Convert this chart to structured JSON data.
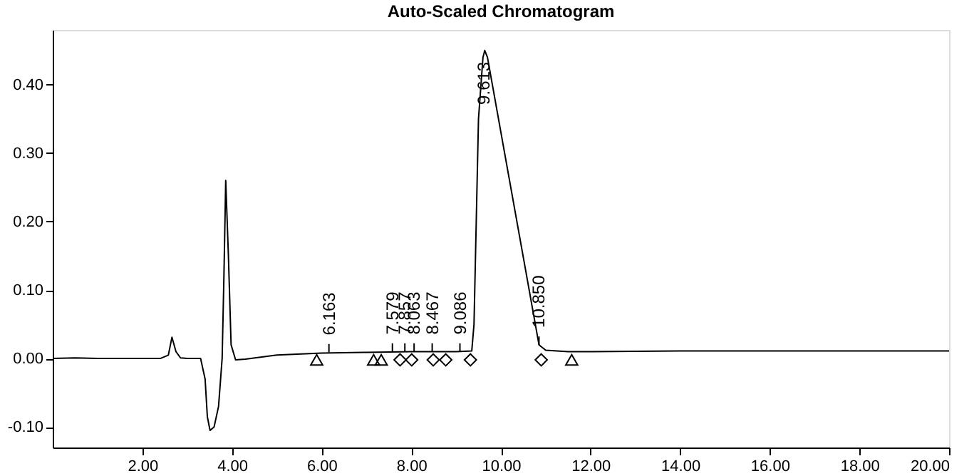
{
  "chart_data": {
    "type": "line",
    "title": "Auto-Scaled Chromatogram",
    "xlim": [
      0,
      20
    ],
    "ylim": [
      -0.13,
      0.48
    ],
    "xticks": [
      {
        "value": 2,
        "label": "2.00"
      },
      {
        "value": 4,
        "label": "4.00"
      },
      {
        "value": 6,
        "label": "6.00"
      },
      {
        "value": 8,
        "label": "8.00"
      },
      {
        "value": 10,
        "label": "10.00"
      },
      {
        "value": 12,
        "label": "12.00"
      },
      {
        "value": 14,
        "label": "14.00"
      },
      {
        "value": 16,
        "label": "16.00"
      },
      {
        "value": 18,
        "label": "18.00"
      },
      {
        "value": 20,
        "label": "20.00"
      }
    ],
    "yticks": [
      {
        "value": -0.1,
        "label": "-0.10"
      },
      {
        "value": 0,
        "label": "0.00"
      },
      {
        "value": 0.1,
        "label": "0.10"
      },
      {
        "value": 0.2,
        "label": "0.20"
      },
      {
        "value": 0.3,
        "label": "0.30"
      },
      {
        "value": 0.4,
        "label": "0.40"
      }
    ],
    "line_style": "solid",
    "series": [
      {
        "color": "#000000",
        "marker": "none",
        "x": [
          0,
          0.5,
          1,
          1.5,
          2,
          2.4,
          2.58,
          2.66,
          2.75,
          2.85,
          3.0,
          3.3,
          3.4,
          3.45,
          3.51,
          3.6,
          3.7,
          3.78,
          3.82,
          3.86,
          3.92,
          3.98,
          4.08,
          4.3,
          5,
          6,
          7,
          8,
          9,
          9.35,
          9.4,
          9.45,
          9.5,
          9.6,
          9.64,
          9.7,
          10.85,
          11.0,
          11.5,
          12,
          14,
          16,
          18,
          20
        ],
        "values": [
          0,
          0.001,
          0,
          0,
          0,
          0,
          0.005,
          0.031,
          0.01,
          0.001,
          0,
          0,
          -0.03,
          -0.085,
          -0.105,
          -0.1,
          -0.07,
          0,
          0.12,
          0.26,
          0.15,
          0.02,
          -0.002,
          -0.001,
          0.005,
          0.008,
          0.009,
          0.01,
          0.01,
          0.011,
          0.05,
          0.2,
          0.35,
          0.44,
          0.45,
          0.44,
          0.02,
          0.012,
          0.01,
          0.01,
          0.011,
          0.011,
          0.011,
          0.011
        ]
      },
      {
        "type": "scatter",
        "color": "#000000",
        "marker": "triangle",
        "x": [
          5.89,
          7.16,
          7.33,
          11.58
        ],
        "values": [
          -0.002,
          -0.002,
          -0.002,
          -0.002
        ]
      },
      {
        "type": "scatter",
        "color": "#000000",
        "marker": "diamond",
        "x": [
          7.75,
          8.01,
          8.49,
          8.77,
          9.32,
          10.9
        ],
        "values": [
          -0.002,
          -0.002,
          -0.002,
          -0.002,
          -0.002,
          -0.002
        ]
      }
    ],
    "annotations": [
      {
        "text": "6.163",
        "x": 6.163,
        "y": 0.009
      },
      {
        "text": "7.579",
        "x": 7.579,
        "y": 0.01
      },
      {
        "text": "7.857",
        "x": 7.857,
        "y": 0.01
      },
      {
        "text": "8.063",
        "x": 8.063,
        "y": 0.01
      },
      {
        "text": "8.467",
        "x": 8.467,
        "y": 0.01
      },
      {
        "text": "9.086",
        "x": 9.086,
        "y": 0.01
      },
      {
        "text": "9.613",
        "x": 9.613,
        "y": 0.45
      },
      {
        "text": "10.850",
        "x": 10.85,
        "y": 0.02
      }
    ]
  }
}
